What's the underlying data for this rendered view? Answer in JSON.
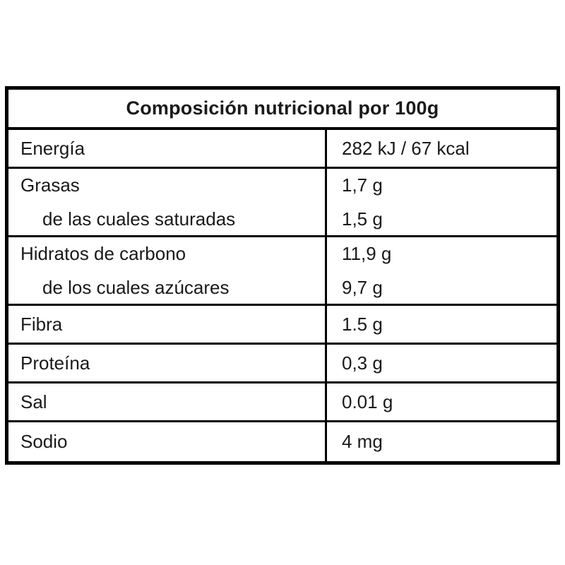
{
  "table": {
    "title": "Composición nutricional por 100g",
    "rows": [
      {
        "label": "Energía",
        "value": "282 kJ / 67 kcal"
      },
      {
        "label": "Grasas",
        "sub_label": "de las cuales saturadas",
        "value": "1,7 g",
        "sub_value": "1,5 g"
      },
      {
        "label": "Hidratos de carbono",
        "sub_label": "de los cuales azúcares",
        "value": "11,9 g",
        "sub_value": "9,7 g"
      },
      {
        "label": "Fibra",
        "value": "1.5 g"
      },
      {
        "label": "Proteína",
        "value": "0,3 g"
      },
      {
        "label": "Sal",
        "value": "0.01 g"
      },
      {
        "label": "Sodio",
        "value": "4 mg"
      }
    ],
    "colors": {
      "border": "#000000",
      "text": "#1a1a1a",
      "background": "#ffffff"
    }
  }
}
